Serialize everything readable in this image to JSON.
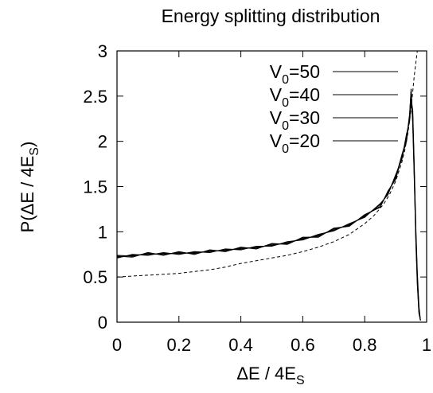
{
  "chart_data": {
    "type": "line",
    "title": "Energy splitting distribution",
    "xlabel": "ΔE / 4E",
    "xlabel_sub": "S",
    "ylabel": "P(ΔE / 4E",
    "ylabel_sub": "S",
    "ylabel_close": ")",
    "xlim": [
      0,
      1
    ],
    "ylim": [
      0,
      3
    ],
    "xticks": [
      "0",
      "0.2",
      "0.4",
      "0.6",
      "0.8",
      "1"
    ],
    "yticks": [
      "0",
      "0.5",
      "1",
      "1.5",
      "2",
      "2.5",
      "3"
    ],
    "grid": false,
    "legend_position": "top-right",
    "series": [
      {
        "name": "V0=50",
        "name_main": "V",
        "name_sub": "0",
        "name_rest": "=50",
        "color": "#000000",
        "style": "solid",
        "x": [
          0.0,
          0.05,
          0.1,
          0.15,
          0.2,
          0.25,
          0.3,
          0.35,
          0.4,
          0.45,
          0.5,
          0.55,
          0.6,
          0.65,
          0.7,
          0.75,
          0.8,
          0.85,
          0.875,
          0.9,
          0.92,
          0.935,
          0.945,
          0.95,
          0.955,
          0.96,
          0.965,
          0.97,
          0.975,
          0.98
        ],
        "y": [
          0.72,
          0.74,
          0.75,
          0.76,
          0.76,
          0.77,
          0.78,
          0.8,
          0.81,
          0.83,
          0.85,
          0.88,
          0.92,
          0.96,
          1.02,
          1.08,
          1.17,
          1.3,
          1.42,
          1.62,
          1.82,
          2.05,
          2.25,
          2.48,
          2.3,
          1.7,
          1.0,
          0.5,
          0.15,
          0.02
        ]
      },
      {
        "name": "V0=40",
        "name_main": "V",
        "name_sub": "0",
        "name_rest": "=40",
        "color": "#000000",
        "style": "solid",
        "x": [
          0.0,
          0.05,
          0.1,
          0.15,
          0.2,
          0.25,
          0.3,
          0.35,
          0.4,
          0.45,
          0.5,
          0.55,
          0.6,
          0.65,
          0.7,
          0.75,
          0.8,
          0.85,
          0.875,
          0.9,
          0.92,
          0.935,
          0.945,
          0.95,
          0.955,
          0.96,
          0.965,
          0.97,
          0.975,
          0.98
        ],
        "y": [
          0.74,
          0.73,
          0.76,
          0.75,
          0.77,
          0.76,
          0.79,
          0.79,
          0.82,
          0.82,
          0.86,
          0.87,
          0.93,
          0.95,
          1.03,
          1.07,
          1.18,
          1.28,
          1.44,
          1.6,
          1.85,
          2.02,
          2.3,
          2.55,
          2.2,
          1.6,
          0.95,
          0.45,
          0.12,
          0.02
        ]
      },
      {
        "name": "V0=30",
        "name_main": "V",
        "name_sub": "0",
        "name_rest": "=30",
        "color": "#000000",
        "style": "solid",
        "x": [
          0.0,
          0.05,
          0.1,
          0.15,
          0.2,
          0.25,
          0.3,
          0.35,
          0.4,
          0.45,
          0.5,
          0.55,
          0.6,
          0.65,
          0.7,
          0.75,
          0.8,
          0.85,
          0.875,
          0.9,
          0.92,
          0.935,
          0.945,
          0.95,
          0.955,
          0.96,
          0.965,
          0.97,
          0.975,
          0.98
        ],
        "y": [
          0.71,
          0.75,
          0.74,
          0.77,
          0.75,
          0.78,
          0.77,
          0.81,
          0.8,
          0.84,
          0.84,
          0.89,
          0.91,
          0.97,
          1.01,
          1.09,
          1.16,
          1.31,
          1.41,
          1.63,
          1.8,
          2.08,
          2.22,
          2.45,
          2.35,
          1.75,
          1.05,
          0.55,
          0.18,
          0.02
        ]
      },
      {
        "name": "V0=20",
        "name_main": "V",
        "name_sub": "0",
        "name_rest": "=20",
        "color": "#000000",
        "style": "solid",
        "x": [
          0.0,
          0.05,
          0.1,
          0.15,
          0.2,
          0.25,
          0.3,
          0.35,
          0.4,
          0.45,
          0.5,
          0.55,
          0.6,
          0.65,
          0.7,
          0.75,
          0.8,
          0.85,
          0.875,
          0.9,
          0.92,
          0.935,
          0.945,
          0.95,
          0.955,
          0.96,
          0.965,
          0.97,
          0.975,
          0.98
        ],
        "y": [
          0.73,
          0.72,
          0.77,
          0.74,
          0.78,
          0.75,
          0.8,
          0.78,
          0.83,
          0.81,
          0.87,
          0.86,
          0.94,
          0.94,
          1.04,
          1.06,
          1.19,
          1.27,
          1.45,
          1.58,
          1.83,
          2.0,
          2.28,
          2.58,
          2.25,
          1.65,
          0.9,
          0.42,
          0.1,
          0.02
        ]
      },
      {
        "name": "",
        "color": "#000000",
        "style": "dashed",
        "x": [
          0.0,
          0.05,
          0.1,
          0.15,
          0.2,
          0.25,
          0.3,
          0.35,
          0.4,
          0.45,
          0.5,
          0.55,
          0.6,
          0.65,
          0.7,
          0.75,
          0.8,
          0.83,
          0.86,
          0.88,
          0.9,
          0.92,
          0.93,
          0.94,
          0.95,
          0.96,
          0.97,
          0.975,
          0.98
        ],
        "y": [
          0.5,
          0.51,
          0.52,
          0.53,
          0.54,
          0.56,
          0.58,
          0.61,
          0.65,
          0.68,
          0.71,
          0.74,
          0.78,
          0.83,
          0.89,
          0.97,
          1.09,
          1.18,
          1.3,
          1.41,
          1.56,
          1.77,
          1.91,
          2.1,
          2.36,
          2.72,
          3.0,
          3.0,
          3.0
        ]
      }
    ]
  }
}
